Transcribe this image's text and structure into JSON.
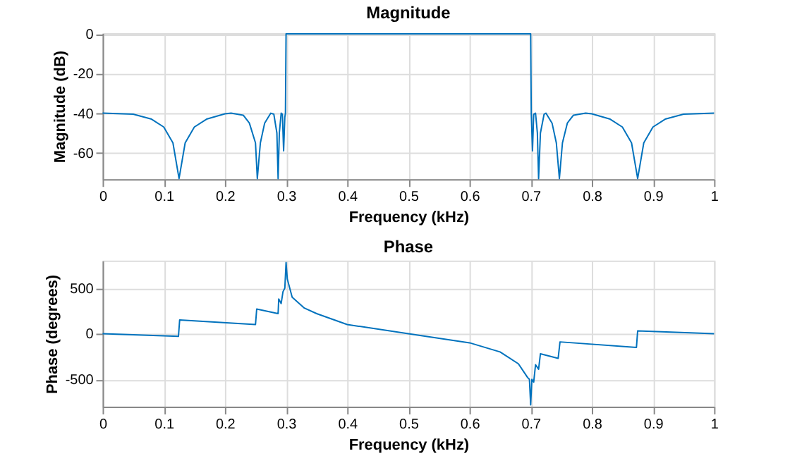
{
  "chart_data": [
    {
      "type": "line",
      "title": "Magnitude",
      "xlabel": "Frequency (kHz)",
      "ylabel": "Magnitude (dB)",
      "x": [
        0,
        0.05,
        0.08,
        0.1,
        0.115,
        0.125,
        0.135,
        0.15,
        0.17,
        0.2,
        0.21,
        0.23,
        0.24,
        0.25,
        0.253,
        0.258,
        0.265,
        0.275,
        0.28,
        0.285,
        0.287,
        0.289,
        0.292,
        0.294,
        0.296,
        0.298,
        0.299,
        0.3,
        0.35,
        0.4,
        0.5,
        0.6,
        0.65,
        0.7,
        0.701,
        0.703,
        0.705,
        0.708,
        0.711,
        0.713,
        0.716,
        0.722,
        0.725,
        0.735,
        0.742,
        0.747,
        0.752,
        0.76,
        0.77,
        0.79,
        0.8,
        0.83,
        0.85,
        0.865,
        0.875,
        0.885,
        0.9,
        0.92,
        0.95,
        1
      ],
      "series": [
        {
          "color": "#0072bd",
          "values": [
            -40,
            -40.5,
            -43,
            -47,
            -55,
            -73,
            -55,
            -47,
            -43,
            -40.3,
            -40,
            -41,
            -45,
            -55,
            -73,
            -55,
            -45,
            -40,
            -40.5,
            -50,
            -73,
            -50,
            -40,
            -40.5,
            -59,
            -42,
            -40,
            0,
            0,
            0,
            0,
            0,
            0,
            0,
            -40,
            -59,
            -40.5,
            -40,
            -50,
            -73,
            -50,
            -40.5,
            -40,
            -45,
            -55,
            -73,
            -55,
            -45,
            -41,
            -40,
            -40.3,
            -43,
            -47,
            -55,
            -73,
            -55,
            -47,
            -43,
            -40.5,
            -40
          ]
        }
      ],
      "xlim": [
        0,
        1
      ],
      "xticks": [
        0,
        0.1,
        0.2,
        0.3,
        0.4,
        0.5,
        0.6,
        0.7,
        0.8,
        0.9,
        1
      ],
      "ylim": [
        -73.3,
        0.4
      ],
      "yticks": [
        -60,
        -40,
        -20,
        0
      ],
      "grid": true
    },
    {
      "type": "line",
      "title": "Phase",
      "xlabel": "Frequency (kHz)",
      "ylabel": "Phase (degrees)",
      "x": [
        0,
        0.124,
        0.126,
        0.25,
        0.252,
        0.287,
        0.288,
        0.292,
        0.295,
        0.298,
        0.3,
        0.302,
        0.31,
        0.33,
        0.35,
        0.4,
        0.5,
        0.6,
        0.65,
        0.68,
        0.695,
        0.698,
        0.7,
        0.702,
        0.705,
        0.708,
        0.713,
        0.716,
        0.745,
        0.748,
        0.873,
        0.875,
        1
      ],
      "series": [
        {
          "color": "#0072bd",
          "values": [
            0,
            -30,
            150,
            100,
            270,
            220,
            380,
            330,
            460,
            500,
            780,
            600,
            400,
            280,
            220,
            100,
            0,
            -100,
            -200,
            -330,
            -480,
            -500,
            -780,
            -500,
            -530,
            -340,
            -390,
            -220,
            -270,
            -90,
            -150,
            30,
            0
          ]
        }
      ],
      "xlim": [
        0,
        1
      ],
      "xticks": [
        0,
        0.1,
        0.2,
        0.3,
        0.4,
        0.5,
        0.6,
        0.7,
        0.8,
        0.9,
        1
      ],
      "ylim": [
        -800,
        800
      ],
      "yticks": [
        -500,
        0,
        500
      ],
      "grid": true
    }
  ]
}
